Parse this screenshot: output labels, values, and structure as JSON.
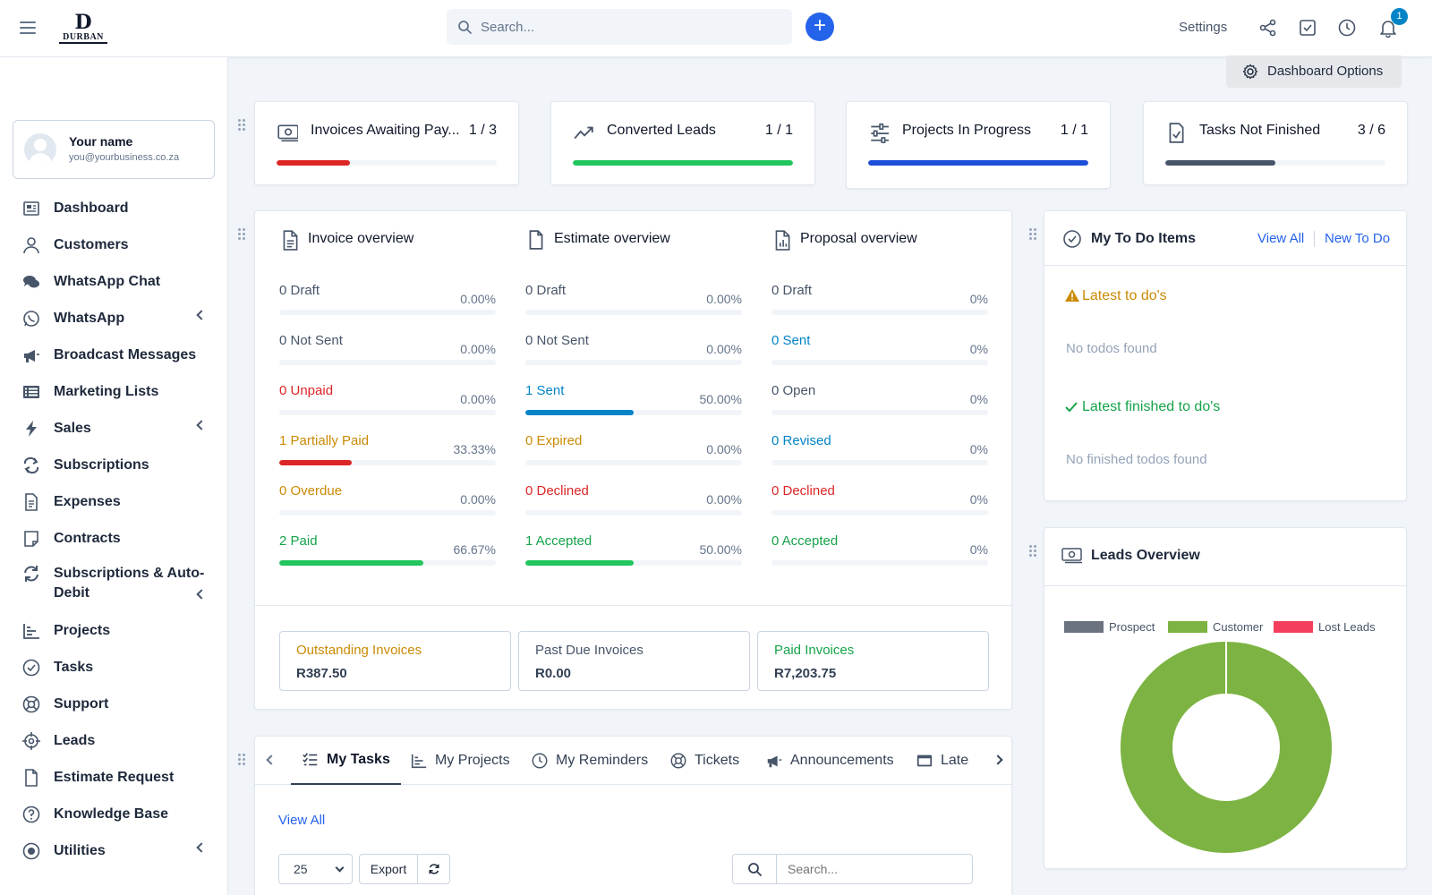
{
  "header": {
    "logo_text": "DURBAN",
    "logo_mark": "D",
    "search_placeholder": "Search...",
    "add_symbol": "+",
    "settings_label": "Settings",
    "notification_count": "1"
  },
  "sidebar": {
    "user": {
      "name": "Your name",
      "email": "you@yourbusiness.co.za"
    },
    "items": [
      {
        "label": "Dashboard",
        "icon": "dashboard-icon",
        "has_children": false
      },
      {
        "label": "Customers",
        "icon": "user-icon",
        "has_children": false
      },
      {
        "label": "WhatsApp Chat",
        "icon": "chat-icon",
        "has_children": false
      },
      {
        "label": "WhatsApp",
        "icon": "whatsapp-icon",
        "has_children": true
      },
      {
        "label": "Broadcast Messages",
        "icon": "megaphone-icon",
        "has_children": false
      },
      {
        "label": "Marketing Lists",
        "icon": "list-icon",
        "has_children": false
      },
      {
        "label": "Sales",
        "icon": "bolt-icon",
        "has_children": true
      },
      {
        "label": "Subscriptions",
        "icon": "repeat-icon",
        "has_children": false
      },
      {
        "label": "Expenses",
        "icon": "file-icon",
        "has_children": false
      },
      {
        "label": "Contracts",
        "icon": "contract-icon",
        "has_children": false
      },
      {
        "label": "Subscriptions & Auto-Debit",
        "icon": "refresh-icon",
        "has_children": true
      },
      {
        "label": "Projects",
        "icon": "chart-icon",
        "has_children": false
      },
      {
        "label": "Tasks",
        "icon": "check-circle-icon",
        "has_children": false
      },
      {
        "label": "Support",
        "icon": "lifebuoy-icon",
        "has_children": false
      },
      {
        "label": "Leads",
        "icon": "crosshair-icon",
        "has_children": false
      },
      {
        "label": "Estimate Request",
        "icon": "document-icon",
        "has_children": false
      },
      {
        "label": "Knowledge Base",
        "icon": "question-icon",
        "has_children": false
      },
      {
        "label": "Utilities",
        "icon": "target-icon",
        "has_children": true
      }
    ]
  },
  "dashboard_options_label": "Dashboard Options",
  "stats": [
    {
      "title": "Invoices Awaiting Pay...",
      "count": "1 / 3",
      "progress": 0.333,
      "color": "#dc2626",
      "icon": "money-icon"
    },
    {
      "title": "Converted Leads",
      "count": "1 / 1",
      "progress": 1.0,
      "color": "#22c55e",
      "icon": "trend-up-icon"
    },
    {
      "title": "Projects In Progress",
      "count": "1 / 1",
      "progress": 1.0,
      "color": "#1d4ed8",
      "icon": "sliders-icon"
    },
    {
      "title": "Tasks Not Finished",
      "count": "3 / 6",
      "progress": 0.5,
      "color": "#475569",
      "icon": "file-check-icon"
    }
  ],
  "overview": {
    "invoice": {
      "title": "Invoice overview",
      "rows": [
        {
          "label": "0 Draft",
          "pct": "0.00%",
          "value": 0,
          "tone": "gray",
          "color": "#94a3b8"
        },
        {
          "label": "0 Not Sent",
          "pct": "0.00%",
          "value": 0,
          "tone": "gray",
          "color": "#94a3b8"
        },
        {
          "label": "0 Unpaid",
          "pct": "0.00%",
          "value": 0,
          "tone": "red",
          "color": "#dc2626"
        },
        {
          "label": "1 Partially Paid",
          "pct": "33.33%",
          "value": 0.3333,
          "tone": "amber",
          "color": "#dc2626"
        },
        {
          "label": "0 Overdue",
          "pct": "0.00%",
          "value": 0,
          "tone": "amber",
          "color": "#ca8a04"
        },
        {
          "label": "2 Paid",
          "pct": "66.67%",
          "value": 0.6667,
          "tone": "green",
          "color": "#22c55e"
        }
      ]
    },
    "estimate": {
      "title": "Estimate overview",
      "rows": [
        {
          "label": "0 Draft",
          "pct": "0.00%",
          "value": 0,
          "tone": "gray",
          "color": "#94a3b8"
        },
        {
          "label": "0 Not Sent",
          "pct": "0.00%",
          "value": 0,
          "tone": "gray",
          "color": "#94a3b8"
        },
        {
          "label": "1 Sent",
          "pct": "50.00%",
          "value": 0.5,
          "tone": "blue",
          "color": "#0284c7"
        },
        {
          "label": "0 Expired",
          "pct": "0.00%",
          "value": 0,
          "tone": "amber",
          "color": "#ca8a04"
        },
        {
          "label": "0 Declined",
          "pct": "0.00%",
          "value": 0,
          "tone": "red",
          "color": "#dc2626"
        },
        {
          "label": "1 Accepted",
          "pct": "50.00%",
          "value": 0.5,
          "tone": "green",
          "color": "#22c55e"
        }
      ]
    },
    "proposal": {
      "title": "Proposal overview",
      "rows": [
        {
          "label": "0 Draft",
          "pct": "0%",
          "value": 0,
          "tone": "gray",
          "color": "#94a3b8"
        },
        {
          "label": "0 Sent",
          "pct": "0%",
          "value": 0,
          "tone": "blue",
          "color": "#0284c7"
        },
        {
          "label": "0 Open",
          "pct": "0%",
          "value": 0,
          "tone": "gray",
          "color": "#94a3b8"
        },
        {
          "label": "0 Revised",
          "pct": "0%",
          "value": 0,
          "tone": "blue",
          "color": "#0284c7"
        },
        {
          "label": "0 Declined",
          "pct": "0%",
          "value": 0,
          "tone": "red",
          "color": "#dc2626"
        },
        {
          "label": "0 Accepted",
          "pct": "0%",
          "value": 0,
          "tone": "green",
          "color": "#22c55e"
        }
      ]
    },
    "summary": [
      {
        "label": "Outstanding Invoices",
        "value": "R387.50",
        "tone": "amber"
      },
      {
        "label": "Past Due Invoices",
        "value": "R0.00",
        "tone": "gray"
      },
      {
        "label": "Paid Invoices",
        "value": "R7,203.75",
        "tone": "green"
      }
    ]
  },
  "todo": {
    "title": "My To Do Items",
    "view_all": "View All",
    "new_todo": "New To Do",
    "latest_heading": "Latest to do's",
    "latest_empty": "No todos found",
    "finished_heading": "Latest finished to do's",
    "finished_empty": "No finished todos found"
  },
  "leads": {
    "title": "Leads Overview",
    "chart_data": {
      "type": "pie",
      "legend": "top",
      "categories": [
        "Prospect",
        "Customer",
        "Lost Leads"
      ],
      "values": [
        0,
        1,
        0
      ],
      "colors": [
        "#6b7280",
        "#7cb342",
        "#f43f5e"
      ]
    }
  },
  "tasks_widget": {
    "tabs": [
      {
        "label": "My Tasks",
        "icon": "task-list-icon"
      },
      {
        "label": "My Projects",
        "icon": "chart-icon"
      },
      {
        "label": "My Reminders",
        "icon": "clock-icon"
      },
      {
        "label": "Tickets",
        "icon": "lifebuoy-icon"
      },
      {
        "label": "Announcements",
        "icon": "megaphone-icon"
      },
      {
        "label": "Lates",
        "icon": "window-icon"
      }
    ],
    "view_all": "View All",
    "page_size": "25",
    "export_label": "Export",
    "search_placeholder": "Search..."
  }
}
